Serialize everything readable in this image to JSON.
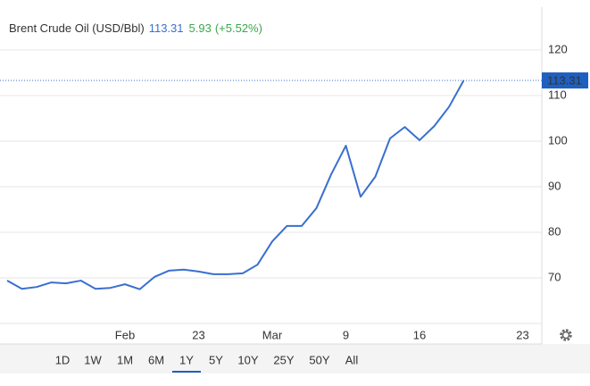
{
  "chart_data": {
    "type": "line",
    "title": "Brent Crude Oil (USD/Bbl)",
    "price": 113.31,
    "change": 5.93,
    "change_pct": "(+5.52%)",
    "categories": [
      null,
      null,
      null,
      null,
      null,
      null,
      null,
      null,
      "Feb",
      null,
      null,
      null,
      null,
      "23",
      null,
      null,
      null,
      null,
      "Mar",
      null,
      null,
      null,
      null,
      "9",
      null,
      null,
      null,
      null,
      "16",
      null,
      null,
      null,
      null,
      null,
      null,
      "23"
    ],
    "series": [
      {
        "name": "Brent Crude Oil",
        "color": "#3a6fd0",
        "values": [
          69.4,
          67.6,
          68.0,
          69.0,
          68.8,
          69.4,
          67.6,
          67.8,
          68.6,
          67.5,
          70.2,
          71.6,
          71.8,
          71.4,
          70.8,
          70.8,
          71.0,
          72.9,
          78.0,
          81.4,
          81.4,
          85.3,
          92.7,
          99.0,
          87.8,
          92.2,
          100.6,
          103.1,
          100.2,
          103.3,
          107.5,
          113.31,
          null,
          null,
          null,
          null
        ]
      }
    ],
    "ylim": [
      60,
      129
    ],
    "yticks": [
      70,
      80,
      90,
      100,
      110,
      120
    ],
    "grid": true,
    "range_buttons": [
      "1D",
      "1W",
      "1M",
      "6M",
      "1Y",
      "5Y",
      "10Y",
      "25Y",
      "50Y",
      "All"
    ],
    "selected_range": "1Y"
  }
}
